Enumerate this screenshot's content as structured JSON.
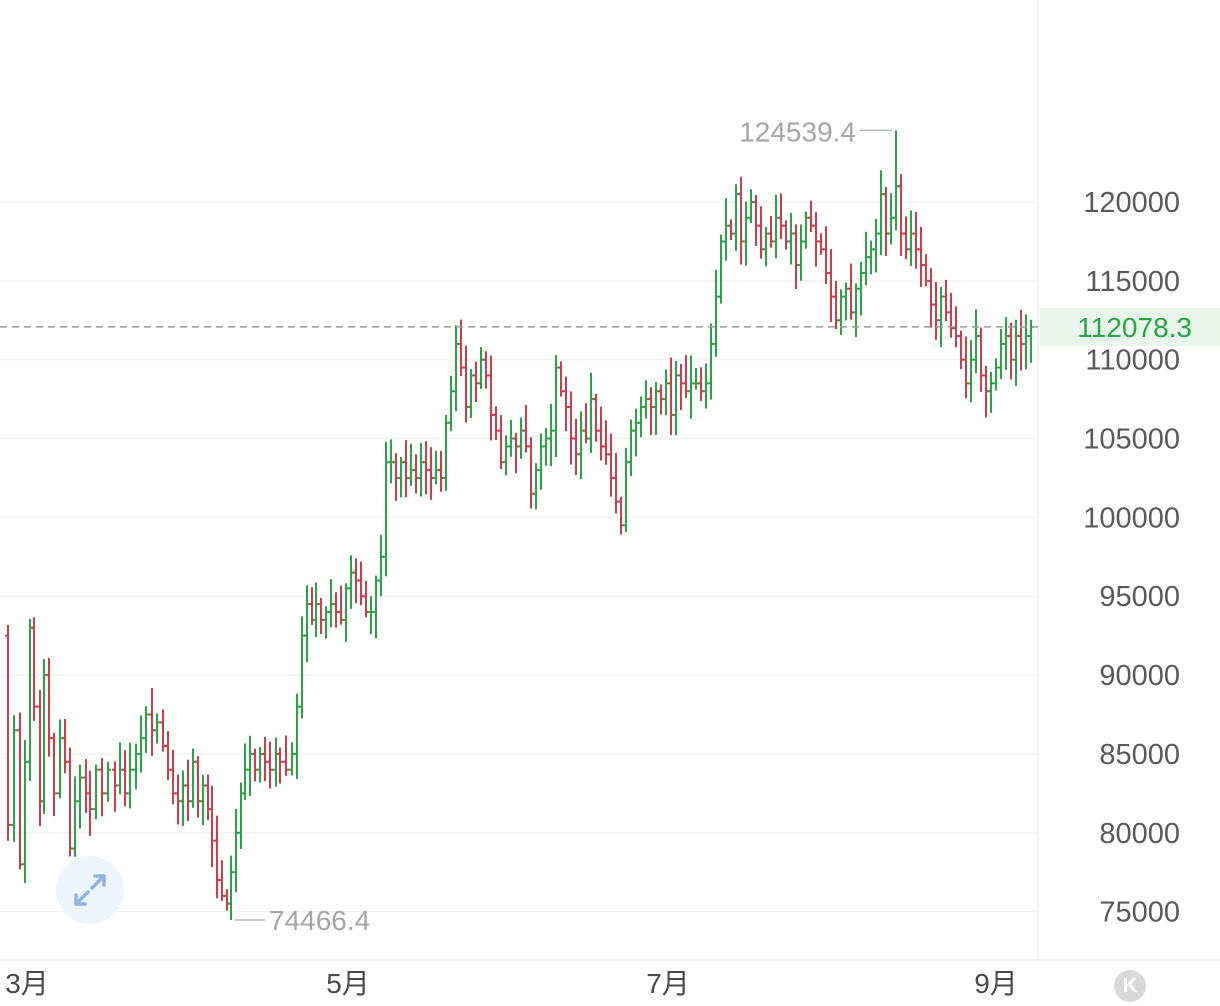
{
  "chart_data": {
    "type": "ohlc",
    "x_labels": [
      "3月",
      "5月",
      "7月",
      "9月"
    ],
    "y_ticks": [
      75000,
      80000,
      85000,
      90000,
      95000,
      100000,
      105000,
      110000,
      115000,
      120000
    ],
    "y_tick_labels": [
      "75000",
      "80000",
      "85000",
      "90000",
      "95000",
      "100000",
      "105000",
      "110000",
      "115000",
      "120000"
    ],
    "ylim": [
      73200,
      125200
    ],
    "grid": "horizontal",
    "current_price": 112078.3,
    "current_price_label": "112078.3",
    "max_label": "124539.4",
    "min_label": "74466.4",
    "up_color": "#2aa545",
    "down_color": "#cf3c4a",
    "close_path": [
      [
        0,
        92500
      ],
      [
        8,
        80500
      ],
      [
        14,
        86500
      ],
      [
        20,
        78000
      ],
      [
        25,
        84500
      ],
      [
        30,
        93000
      ],
      [
        34,
        88000
      ],
      [
        40,
        82000
      ],
      [
        44,
        90000
      ],
      [
        49,
        86000
      ],
      [
        54,
        82500
      ],
      [
        60,
        86000
      ],
      [
        65,
        84500
      ],
      [
        70,
        79000
      ],
      [
        75,
        82000
      ],
      [
        80,
        83500
      ],
      [
        86,
        82500
      ],
      [
        90,
        81500
      ],
      [
        96,
        84000
      ],
      [
        102,
        82500
      ],
      [
        108,
        84000
      ],
      [
        115,
        83000
      ],
      [
        120,
        84000
      ],
      [
        125,
        82500
      ],
      [
        130,
        84000
      ],
      [
        136,
        85000
      ],
      [
        141,
        86000
      ],
      [
        146,
        87500
      ],
      [
        152,
        86500
      ],
      [
        157,
        87000
      ],
      [
        163,
        85500
      ],
      [
        168,
        84000
      ],
      [
        173,
        82500
      ],
      [
        178,
        82000
      ],
      [
        183,
        83000
      ],
      [
        188,
        82000
      ],
      [
        193,
        84500
      ],
      [
        198,
        82000
      ],
      [
        203,
        83000
      ],
      [
        208,
        81500
      ],
      [
        212,
        79500
      ],
      [
        217,
        77000
      ],
      [
        222,
        76000
      ],
      [
        227,
        75500
      ],
      [
        231,
        77500
      ],
      [
        236,
        80000
      ],
      [
        241,
        82500
      ],
      [
        245,
        84000
      ],
      [
        250,
        85000
      ],
      [
        255,
        84000
      ],
      [
        260,
        85000
      ],
      [
        265,
        84500
      ],
      [
        270,
        84000
      ],
      [
        276,
        85000
      ],
      [
        280,
        84500
      ],
      [
        286,
        84000
      ],
      [
        292,
        85000
      ],
      [
        297,
        88000
      ],
      [
        302,
        92500
      ],
      [
        307,
        94500
      ],
      [
        312,
        93500
      ],
      [
        316,
        94500
      ],
      [
        321,
        93500
      ],
      [
        326,
        94000
      ],
      [
        331,
        94500
      ],
      [
        336,
        94000
      ],
      [
        341,
        93500
      ],
      [
        346,
        95500
      ],
      [
        351,
        96500
      ],
      [
        356,
        96000
      ],
      [
        361,
        95000
      ],
      [
        366,
        94000
      ],
      [
        371,
        94000
      ],
      [
        376,
        96000
      ],
      [
        381,
        97500
      ],
      [
        386,
        103500
      ],
      [
        391,
        103500
      ],
      [
        396,
        102500
      ],
      [
        401,
        103500
      ],
      [
        406,
        102500
      ],
      [
        411,
        103000
      ],
      [
        416,
        102500
      ],
      [
        421,
        103500
      ],
      [
        426,
        103000
      ],
      [
        431,
        102500
      ],
      [
        436,
        103000
      ],
      [
        441,
        102500
      ],
      [
        446,
        106000
      ],
      [
        451,
        108000
      ],
      [
        456,
        111000
      ],
      [
        461,
        109500
      ],
      [
        466,
        107000
      ],
      [
        471,
        109000
      ],
      [
        476,
        108500
      ],
      [
        481,
        110000
      ],
      [
        486,
        109000
      ],
      [
        491,
        106500
      ],
      [
        496,
        105500
      ],
      [
        501,
        103500
      ],
      [
        506,
        104500
      ],
      [
        511,
        105000
      ],
      [
        516,
        104500
      ],
      [
        521,
        105500
      ],
      [
        526,
        104500
      ],
      [
        531,
        101500
      ],
      [
        536,
        103000
      ],
      [
        541,
        104500
      ],
      [
        546,
        105000
      ],
      [
        551,
        105500
      ],
      [
        556,
        109500
      ],
      [
        561,
        108000
      ],
      [
        566,
        107000
      ],
      [
        571,
        105000
      ],
      [
        576,
        104000
      ],
      [
        581,
        105500
      ],
      [
        586,
        105000
      ],
      [
        591,
        107500
      ],
      [
        596,
        105500
      ],
      [
        601,
        104500
      ],
      [
        606,
        104000
      ],
      [
        611,
        102500
      ],
      [
        616,
        101000
      ],
      [
        621,
        99500
      ],
      [
        626,
        103500
      ],
      [
        631,
        105500
      ],
      [
        636,
        106000
      ],
      [
        641,
        107000
      ],
      [
        646,
        107500
      ],
      [
        651,
        107000
      ],
      [
        656,
        108000
      ],
      [
        661,
        107500
      ],
      [
        666,
        108500
      ],
      [
        671,
        106500
      ],
      [
        676,
        109000
      ],
      [
        681,
        108500
      ],
      [
        686,
        108000
      ],
      [
        691,
        108500
      ],
      [
        696,
        108500
      ],
      [
        701,
        108000
      ],
      [
        706,
        108500
      ],
      [
        711,
        111000
      ],
      [
        716,
        114000
      ],
      [
        721,
        117500
      ],
      [
        726,
        118500
      ],
      [
        731,
        118000
      ],
      [
        736,
        120500
      ],
      [
        741,
        117500
      ],
      [
        746,
        119000
      ],
      [
        751,
        120000
      ],
      [
        756,
        118500
      ],
      [
        761,
        117000
      ],
      [
        766,
        118000
      ],
      [
        771,
        117500
      ],
      [
        776,
        119000
      ],
      [
        781,
        118500
      ],
      [
        786,
        117500
      ],
      [
        791,
        118000
      ],
      [
        796,
        116000
      ],
      [
        801,
        117500
      ],
      [
        806,
        119000
      ],
      [
        811,
        118500
      ],
      [
        816,
        117500
      ],
      [
        821,
        117000
      ],
      [
        826,
        115500
      ],
      [
        831,
        114000
      ],
      [
        836,
        112500
      ],
      [
        841,
        114000
      ],
      [
        846,
        114500
      ],
      [
        851,
        113000
      ],
      [
        856,
        114500
      ],
      [
        861,
        115500
      ],
      [
        866,
        116500
      ],
      [
        871,
        117000
      ],
      [
        876,
        118000
      ],
      [
        881,
        120500
      ],
      [
        886,
        118000
      ],
      [
        891,
        119000
      ],
      [
        896,
        121000
      ],
      [
        901,
        118000
      ],
      [
        906,
        117000
      ],
      [
        911,
        118000
      ],
      [
        916,
        117000
      ],
      [
        921,
        116000
      ],
      [
        926,
        115000
      ],
      [
        931,
        113500
      ],
      [
        936,
        112500
      ],
      [
        941,
        114000
      ],
      [
        946,
        113000
      ],
      [
        951,
        112000
      ],
      [
        956,
        111500
      ],
      [
        961,
        110000
      ],
      [
        966,
        108500
      ],
      [
        971,
        110000
      ],
      [
        976,
        111500
      ],
      [
        981,
        109000
      ],
      [
        986,
        108000
      ],
      [
        991,
        108500
      ],
      [
        996,
        109500
      ],
      [
        1001,
        111000
      ],
      [
        1006,
        111500
      ],
      [
        1011,
        110000
      ],
      [
        1016,
        111500
      ],
      [
        1021,
        111000
      ],
      [
        1026,
        111500
      ],
      [
        1031,
        112078
      ]
    ]
  }
}
